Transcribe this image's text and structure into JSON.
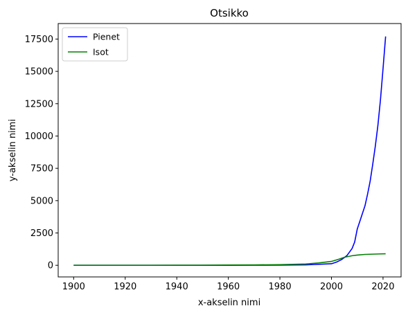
{
  "chart_data": {
    "type": "line",
    "title": "Otsikko",
    "xlabel": "x-akselin nimi",
    "ylabel": "y-akselin nimi",
    "xlim": [
      1894,
      2027
    ],
    "ylim": [
      -900,
      18700
    ],
    "xticks": [
      1900,
      1920,
      1940,
      1960,
      1980,
      2000,
      2020
    ],
    "yticks": [
      0,
      2500,
      5000,
      7500,
      10000,
      12500,
      15000,
      17500
    ],
    "grid": false,
    "legend_position": "top-left",
    "series": [
      {
        "name": "Pienet",
        "color": "#0000ff",
        "x": [
          1900,
          1910,
          1920,
          1930,
          1940,
          1950,
          1960,
          1970,
          1980,
          1990,
          2000,
          2002,
          2004,
          2006,
          2008,
          2009,
          2010,
          2011,
          2012,
          2013,
          2014,
          2015,
          2016,
          2017,
          2018,
          2019,
          2020,
          2021
        ],
        "y": [
          0,
          0,
          0,
          0,
          0,
          0,
          0,
          5,
          10,
          30,
          120,
          250,
          450,
          750,
          1300,
          1800,
          2800,
          3400,
          4000,
          4600,
          5500,
          6500,
          7800,
          9200,
          10800,
          12800,
          15200,
          17700
        ]
      },
      {
        "name": "Isot",
        "color": "#008000",
        "x": [
          1900,
          1910,
          1920,
          1930,
          1940,
          1950,
          1960,
          1970,
          1980,
          1990,
          1995,
          2000,
          2003,
          2005,
          2008,
          2010,
          2013,
          2016,
          2019,
          2021
        ],
        "y": [
          0,
          0,
          0,
          0,
          5,
          10,
          20,
          30,
          50,
          100,
          180,
          300,
          480,
          620,
          740,
          790,
          840,
          860,
          880,
          890
        ]
      }
    ]
  }
}
